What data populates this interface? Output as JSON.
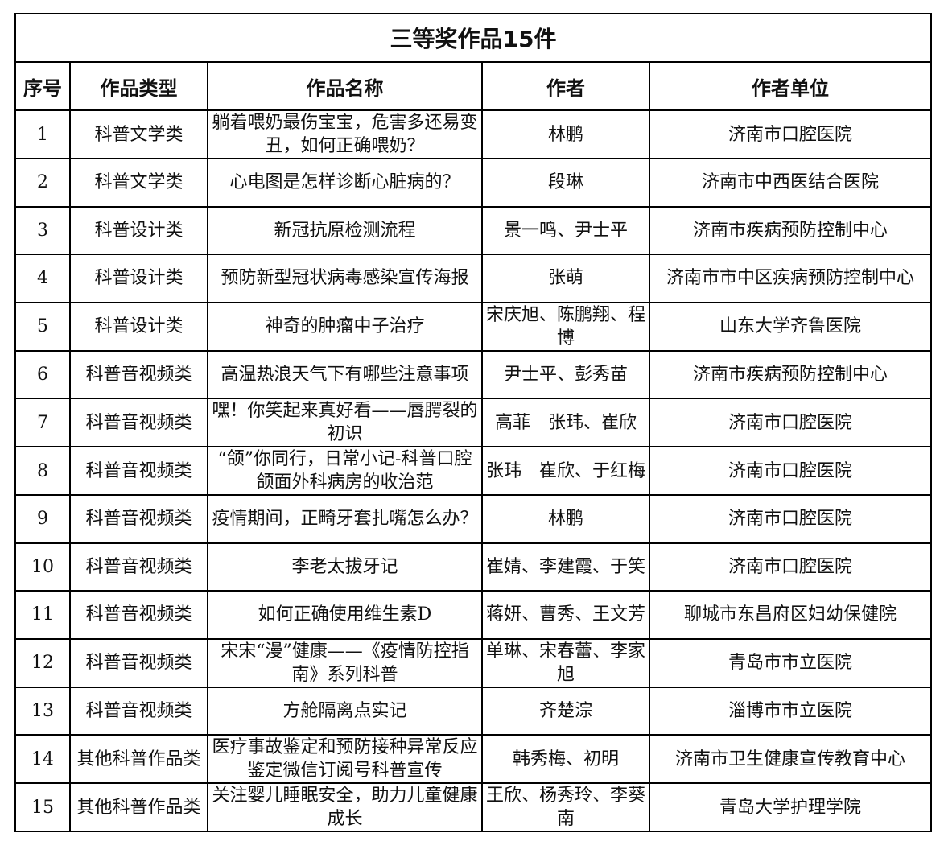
{
  "title": "三等奖作品15件",
  "headers": [
    "序号",
    "作品类型",
    "作品名称",
    "作者",
    "作者单位"
  ],
  "rows": [
    [
      "1",
      "科普文学类",
      "躺着喂奶最伤宝宝，危害多还易变丑，如何正确喂奶？",
      "林鹏",
      "济南市口腔医院"
    ],
    [
      "2",
      "科普文学类",
      "心电图是怎样诊断心脏病的？",
      "段琳",
      "济南市中西医结合医院"
    ],
    [
      "3",
      "科普设计类",
      "新冠抗原检测流程",
      "景一鸣、尹士平",
      "济南市疾病预防控制中心"
    ],
    [
      "4",
      "科普设计类",
      "预防新型冠状病毒感染宣传海报",
      "张萌",
      "济南市市中区疾病预防控制中心"
    ],
    [
      "5",
      "科普设计类",
      "神奇的肿瘤中子治疗",
      "宋庆旭、陈鹏翔、程博",
      "山东大学齐鲁医院"
    ],
    [
      "6",
      "科普音视频类",
      "高温热浪天气下有哪些注意事项",
      "尹士平、彭秀苗",
      "济南市疾病预防控制中心"
    ],
    [
      "7",
      "科普音视频类",
      "嘿！你笑起来真好看——唇腭裂的初识",
      "高菲　张玮、崔欣",
      "济南市口腔医院"
    ],
    [
      "8",
      "科普音视频类",
      "“颌”你同行，日常小记-科普口腔颌面外科病房的收治范",
      "张玮　崔欣、于红梅",
      "济南市口腔医院"
    ],
    [
      "9",
      "科普音视频类",
      "疫情期间，正畸牙套扎嘴怎么办？",
      "林鹏",
      "济南市口腔医院"
    ],
    [
      "10",
      "科普音视频类",
      "李老太拔牙记",
      "崔婧、李建霞、于笑",
      "济南市口腔医院"
    ],
    [
      "11",
      "科普音视频类",
      "如何正确使用维生素D",
      "蒋妍、曹秀、王文芳",
      "聊城市东昌府区妇幼保健院"
    ],
    [
      "12",
      "科普音视频类",
      "宋宋“漫”健康——《疫情防控指南》系列科普",
      "单琳、宋春蕾、李家旭",
      "青岛市市立医院"
    ],
    [
      "13",
      "科普音视频类",
      "方舱隔离点实记",
      "齐楚淙",
      "淄博市市立医院"
    ],
    [
      "14",
      "其他科普作品类",
      "医疗事故鉴定和预防接种异常反应鉴定微信订阅号科普宣传",
      "韩秀梅、初明",
      "济南市卫生健康宣传教育中心"
    ],
    [
      "15",
      "其他科普作品类",
      "关注婴儿睡眠安全，助力儿童健康成长",
      "王欣、杨秀玲、李葵南",
      "青岛大学护理学院"
    ]
  ]
}
